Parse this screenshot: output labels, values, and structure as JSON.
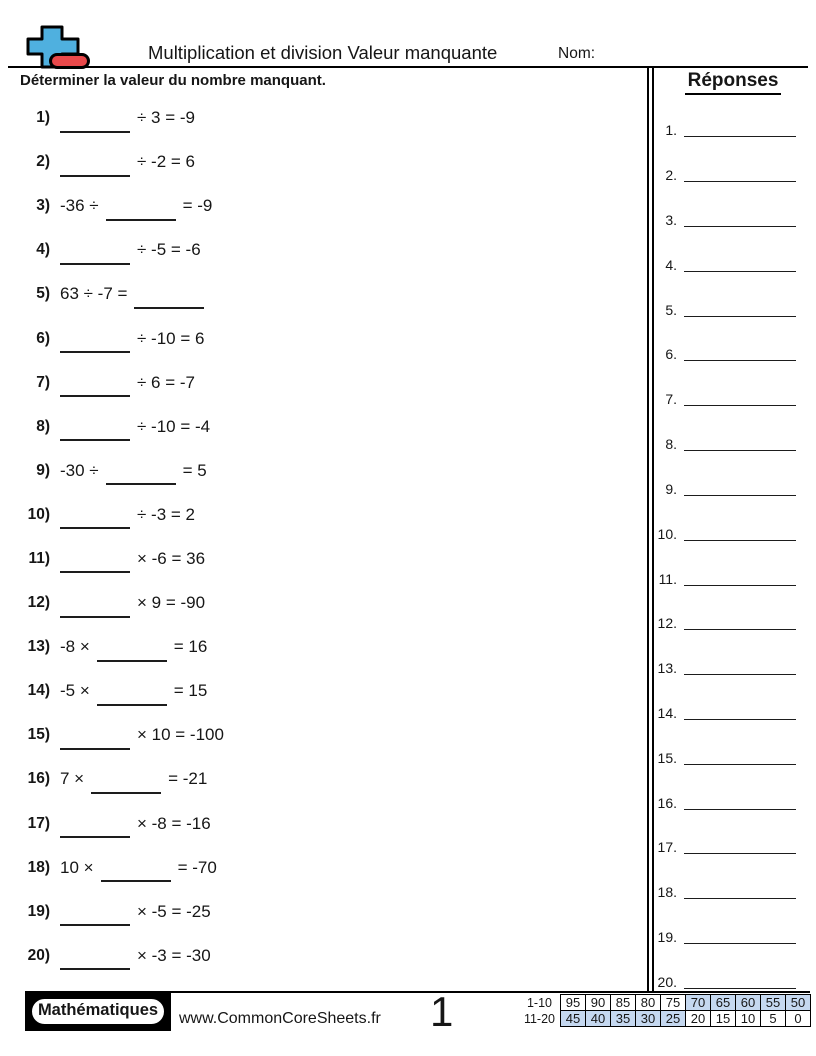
{
  "header": {
    "title": "Multiplication et division Valeur manquante",
    "name_label": "Nom:",
    "logo": "plus-minus-math-logo"
  },
  "instruction": "Déterminer la valeur du nombre manquant.",
  "answers_section": {
    "header": "Réponses",
    "numbers": [
      "1.",
      "2.",
      "3.",
      "4.",
      "5.",
      "6.",
      "7.",
      "8.",
      "9.",
      "10.",
      "11.",
      "12.",
      "13.",
      "14.",
      "15.",
      "16.",
      "17.",
      "18.",
      "19.",
      "20."
    ]
  },
  "problems": [
    {
      "num": "1)",
      "before": "",
      "after": "÷ 3 = -9"
    },
    {
      "num": "2)",
      "before": "",
      "after": "÷ -2 = 6"
    },
    {
      "num": "3)",
      "before": "-36 ÷",
      "after": "= -9"
    },
    {
      "num": "4)",
      "before": "",
      "after": "÷ -5 = -6"
    },
    {
      "num": "5)",
      "before": "63 ÷ -7 =",
      "after": ""
    },
    {
      "num": "6)",
      "before": "",
      "after": "÷ -10 = 6"
    },
    {
      "num": "7)",
      "before": "",
      "after": "÷ 6 = -7"
    },
    {
      "num": "8)",
      "before": "",
      "after": "÷ -10 = -4"
    },
    {
      "num": "9)",
      "before": "-30 ÷",
      "after": "= 5"
    },
    {
      "num": "10)",
      "before": "",
      "after": "÷ -3 = 2"
    },
    {
      "num": "11)",
      "before": "",
      "after": "× -6 = 36"
    },
    {
      "num": "12)",
      "before": "",
      "after": "× 9 = -90"
    },
    {
      "num": "13)",
      "before": "-8 ×",
      "after": "= 16"
    },
    {
      "num": "14)",
      "before": "-5 ×",
      "after": "= 15"
    },
    {
      "num": "15)",
      "before": "",
      "after": "× 10 = -100"
    },
    {
      "num": "16)",
      "before": "7 ×",
      "after": "= -21"
    },
    {
      "num": "17)",
      "before": "",
      "after": "× -8 = -16"
    },
    {
      "num": "18)",
      "before": "10 ×",
      "after": "= -70"
    },
    {
      "num": "19)",
      "before": "",
      "after": "× -5 = -25"
    },
    {
      "num": "20)",
      "before": "",
      "after": "× -3 = -30"
    }
  ],
  "footer": {
    "badge": "Mathématiques",
    "url": "www.CommonCoreSheets.fr",
    "page_number": "1",
    "score_table": {
      "rows": [
        {
          "label": "1-10",
          "values": [
            "95",
            "90",
            "85",
            "80",
            "75",
            "70",
            "65",
            "60",
            "55",
            "50"
          ],
          "highlighted": [
            false,
            false,
            false,
            false,
            false,
            true,
            true,
            true,
            true,
            true
          ]
        },
        {
          "label": "11-20",
          "values": [
            "45",
            "40",
            "35",
            "30",
            "25",
            "20",
            "15",
            "10",
            "5",
            "0"
          ],
          "highlighted": [
            true,
            true,
            true,
            true,
            true,
            false,
            false,
            false,
            false,
            false
          ]
        }
      ]
    }
  },
  "colors": {
    "logo_blue": "#4FB0DF",
    "logo_red": "#E9494B",
    "table_highlight": "#C5D8F0",
    "ink": "#000000"
  }
}
